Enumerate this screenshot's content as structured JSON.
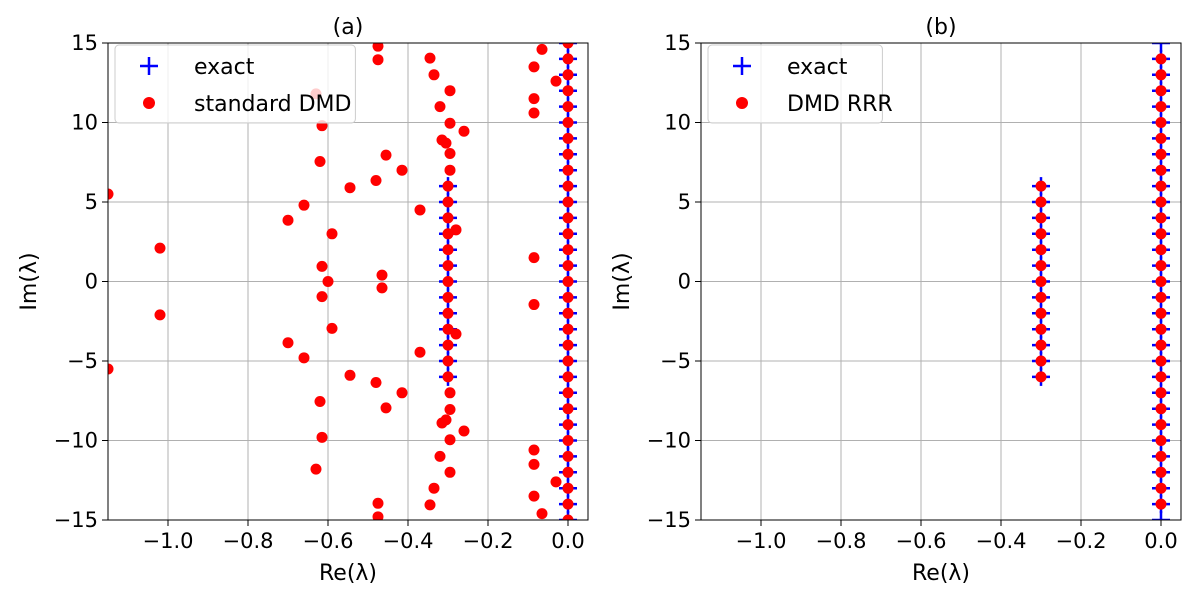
{
  "chart_data": [
    {
      "type": "scatter",
      "title": "(a)",
      "xlabel": "Re(λ)",
      "ylabel": "Im(λ)",
      "xlim": [
        -1.15,
        0.05
      ],
      "ylim": [
        -15,
        15
      ],
      "xticks": [
        -1.0,
        -0.8,
        -0.6,
        -0.4,
        -0.2,
        0.0
      ],
      "xtick_labels": [
        "−1.0",
        "−0.8",
        "−0.6",
        "−0.4",
        "−0.2",
        "0.0"
      ],
      "yticks": [
        -15,
        -10,
        -5,
        0,
        5,
        10,
        15
      ],
      "ytick_labels": [
        "−15",
        "−10",
        "−5",
        "0",
        "5",
        "10",
        "15"
      ],
      "grid": true,
      "legend_position": "top-left",
      "series": [
        {
          "name": "exact",
          "marker": "plus",
          "color": "#0000ff",
          "points": [
            [
              -0.3,
              -6
            ],
            [
              -0.3,
              -5
            ],
            [
              -0.3,
              -4
            ],
            [
              -0.3,
              -3
            ],
            [
              -0.3,
              -2
            ],
            [
              -0.3,
              -1
            ],
            [
              -0.3,
              0
            ],
            [
              -0.3,
              1
            ],
            [
              -0.3,
              2
            ],
            [
              -0.3,
              3
            ],
            [
              -0.3,
              4
            ],
            [
              -0.3,
              5
            ],
            [
              -0.3,
              6
            ],
            [
              0,
              -15
            ],
            [
              0,
              -14
            ],
            [
              0,
              -13
            ],
            [
              0,
              -12
            ],
            [
              0,
              -11
            ],
            [
              0,
              -10
            ],
            [
              0,
              -9
            ],
            [
              0,
              -8
            ],
            [
              0,
              -7
            ],
            [
              0,
              -6
            ],
            [
              0,
              -5
            ],
            [
              0,
              -4
            ],
            [
              0,
              -3
            ],
            [
              0,
              -2
            ],
            [
              0,
              -1
            ],
            [
              0,
              0
            ],
            [
              0,
              1
            ],
            [
              0,
              2
            ],
            [
              0,
              3
            ],
            [
              0,
              4
            ],
            [
              0,
              5
            ],
            [
              0,
              6
            ],
            [
              0,
              7
            ],
            [
              0,
              8
            ],
            [
              0,
              9
            ],
            [
              0,
              10
            ],
            [
              0,
              11
            ],
            [
              0,
              12
            ],
            [
              0,
              13
            ],
            [
              0,
              14
            ],
            [
              0,
              15
            ]
          ]
        },
        {
          "name": "standard DMD",
          "marker": "circle",
          "color": "#ff0000",
          "points": [
            [
              -0.3,
              -6
            ],
            [
              -0.3,
              -5
            ],
            [
              -0.3,
              -4
            ],
            [
              -0.3,
              -3
            ],
            [
              -0.3,
              -2
            ],
            [
              -0.3,
              -1
            ],
            [
              -0.3,
              0
            ],
            [
              -0.3,
              1
            ],
            [
              -0.3,
              2
            ],
            [
              -0.3,
              3
            ],
            [
              -0.3,
              4
            ],
            [
              -0.3,
              5
            ],
            [
              -0.3,
              6
            ],
            [
              0,
              -15
            ],
            [
              0,
              -14
            ],
            [
              0,
              -13
            ],
            [
              0,
              -12
            ],
            [
              0,
              -11
            ],
            [
              0,
              -10
            ],
            [
              0,
              -9
            ],
            [
              0,
              -8
            ],
            [
              0,
              -7
            ],
            [
              0,
              -6
            ],
            [
              0,
              -5
            ],
            [
              0,
              -4
            ],
            [
              0,
              -3
            ],
            [
              0,
              -2
            ],
            [
              0,
              -1
            ],
            [
              0,
              0
            ],
            [
              0,
              1
            ],
            [
              0,
              2
            ],
            [
              0,
              3
            ],
            [
              0,
              4
            ],
            [
              0,
              5
            ],
            [
              0,
              6
            ],
            [
              0,
              7
            ],
            [
              0,
              8
            ],
            [
              0,
              9
            ],
            [
              0,
              10
            ],
            [
              0,
              11
            ],
            [
              0,
              12
            ],
            [
              0,
              13
            ],
            [
              0,
              14
            ],
            [
              0,
              15
            ],
            [
              -1.15,
              5.5
            ],
            [
              -1.15,
              -5.5
            ],
            [
              -1.02,
              2.1
            ],
            [
              -1.02,
              -2.1
            ],
            [
              -0.7,
              3.85
            ],
            [
              -0.7,
              -3.85
            ],
            [
              -0.66,
              4.8
            ],
            [
              -0.66,
              -4.8
            ],
            [
              -0.62,
              7.55
            ],
            [
              -0.62,
              -7.55
            ],
            [
              -0.615,
              9.8
            ],
            [
              -0.615,
              -9.8
            ],
            [
              -0.63,
              11.8
            ],
            [
              -0.63,
              -11.8
            ],
            [
              -0.615,
              0.95
            ],
            [
              -0.615,
              -0.95
            ],
            [
              -0.6,
              0.0
            ],
            [
              -0.59,
              3.0
            ],
            [
              -0.59,
              -2.95
            ],
            [
              -0.545,
              5.9
            ],
            [
              -0.545,
              -5.9
            ],
            [
              -0.48,
              6.35
            ],
            [
              -0.48,
              -6.35
            ],
            [
              -0.475,
              14.8
            ],
            [
              -0.475,
              13.95
            ],
            [
              -0.475,
              -14.8
            ],
            [
              -0.475,
              -13.95
            ],
            [
              -0.465,
              0.4
            ],
            [
              -0.465,
              -0.4
            ],
            [
              -0.455,
              7.95
            ],
            [
              -0.455,
              -7.95
            ],
            [
              -0.415,
              7.0
            ],
            [
              -0.415,
              -7.0
            ],
            [
              -0.37,
              4.5
            ],
            [
              -0.37,
              -4.45
            ],
            [
              -0.345,
              14.05
            ],
            [
              -0.345,
              -14.05
            ],
            [
              -0.335,
              13.0
            ],
            [
              -0.335,
              -13.0
            ],
            [
              -0.32,
              11.0
            ],
            [
              -0.32,
              -11.0
            ],
            [
              -0.315,
              8.9
            ],
            [
              -0.315,
              -8.9
            ],
            [
              -0.305,
              8.7
            ],
            [
              -0.305,
              -8.7
            ],
            [
              -0.295,
              12.0
            ],
            [
              -0.295,
              -12.0
            ],
            [
              -0.295,
              9.95
            ],
            [
              -0.295,
              -9.95
            ],
            [
              -0.295,
              8.05
            ],
            [
              -0.295,
              -8.05
            ],
            [
              -0.295,
              7.0
            ],
            [
              -0.295,
              -7.0
            ],
            [
              -0.28,
              3.25
            ],
            [
              -0.28,
              -3.3
            ],
            [
              -0.26,
              9.45
            ],
            [
              -0.26,
              -9.4
            ],
            [
              -0.085,
              13.5
            ],
            [
              -0.085,
              -13.5
            ],
            [
              -0.085,
              11.5
            ],
            [
              -0.085,
              -11.5
            ],
            [
              -0.085,
              10.6
            ],
            [
              -0.085,
              -10.6
            ],
            [
              -0.085,
              1.5
            ],
            [
              -0.085,
              -1.45
            ],
            [
              -0.065,
              14.6
            ],
            [
              -0.065,
              -14.6
            ],
            [
              -0.03,
              12.6
            ],
            [
              -0.03,
              -12.6
            ]
          ]
        }
      ]
    },
    {
      "type": "scatter",
      "title": "(b)",
      "xlabel": "Re(λ)",
      "ylabel": "Im(λ)",
      "xlim": [
        -1.15,
        0.05
      ],
      "ylim": [
        -15,
        15
      ],
      "xticks": [
        -1.0,
        -0.8,
        -0.6,
        -0.4,
        -0.2,
        0.0
      ],
      "xtick_labels": [
        "−1.0",
        "−0.8",
        "−0.6",
        "−0.4",
        "−0.2",
        "0.0"
      ],
      "yticks": [
        -15,
        -10,
        -5,
        0,
        5,
        10,
        15
      ],
      "ytick_labels": [
        "−15",
        "−10",
        "−5",
        "0",
        "5",
        "10",
        "15"
      ],
      "grid": true,
      "legend_position": "top-left",
      "series": [
        {
          "name": "exact",
          "marker": "plus",
          "color": "#0000ff",
          "points": [
            [
              -0.3,
              -6
            ],
            [
              -0.3,
              -5
            ],
            [
              -0.3,
              -4
            ],
            [
              -0.3,
              -3
            ],
            [
              -0.3,
              -2
            ],
            [
              -0.3,
              -1
            ],
            [
              -0.3,
              0
            ],
            [
              -0.3,
              1
            ],
            [
              -0.3,
              2
            ],
            [
              -0.3,
              3
            ],
            [
              -0.3,
              4
            ],
            [
              -0.3,
              5
            ],
            [
              -0.3,
              6
            ],
            [
              0,
              -15
            ],
            [
              0,
              -14
            ],
            [
              0,
              -13
            ],
            [
              0,
              -12
            ],
            [
              0,
              -11
            ],
            [
              0,
              -10
            ],
            [
              0,
              -9
            ],
            [
              0,
              -8
            ],
            [
              0,
              -7
            ],
            [
              0,
              -6
            ],
            [
              0,
              -5
            ],
            [
              0,
              -4
            ],
            [
              0,
              -3
            ],
            [
              0,
              -2
            ],
            [
              0,
              -1
            ],
            [
              0,
              0
            ],
            [
              0,
              1
            ],
            [
              0,
              2
            ],
            [
              0,
              3
            ],
            [
              0,
              4
            ],
            [
              0,
              5
            ],
            [
              0,
              6
            ],
            [
              0,
              7
            ],
            [
              0,
              8
            ],
            [
              0,
              9
            ],
            [
              0,
              10
            ],
            [
              0,
              11
            ],
            [
              0,
              12
            ],
            [
              0,
              13
            ],
            [
              0,
              14
            ],
            [
              0,
              15
            ]
          ]
        },
        {
          "name": "DMD RRR",
          "marker": "circle",
          "color": "#ff0000",
          "points": [
            [
              -0.3,
              -6
            ],
            [
              -0.3,
              -5
            ],
            [
              -0.3,
              -4
            ],
            [
              -0.3,
              -3
            ],
            [
              -0.3,
              -2
            ],
            [
              -0.3,
              -1
            ],
            [
              -0.3,
              0
            ],
            [
              -0.3,
              1
            ],
            [
              -0.3,
              2
            ],
            [
              -0.3,
              3
            ],
            [
              -0.3,
              4
            ],
            [
              -0.3,
              5
            ],
            [
              -0.3,
              6
            ],
            [
              0,
              -14
            ],
            [
              0,
              -13
            ],
            [
              0,
              -12
            ],
            [
              0,
              -11
            ],
            [
              0,
              -10
            ],
            [
              0,
              -9
            ],
            [
              0,
              -8
            ],
            [
              0,
              -7
            ],
            [
              0,
              -6
            ],
            [
              0,
              -5
            ],
            [
              0,
              -4
            ],
            [
              0,
              -3
            ],
            [
              0,
              -2
            ],
            [
              0,
              -1
            ],
            [
              0,
              0
            ],
            [
              0,
              1
            ],
            [
              0,
              2
            ],
            [
              0,
              3
            ],
            [
              0,
              4
            ],
            [
              0,
              5
            ],
            [
              0,
              6
            ],
            [
              0,
              7
            ],
            [
              0,
              8
            ],
            [
              0,
              9
            ],
            [
              0,
              10
            ],
            [
              0,
              11
            ],
            [
              0,
              12
            ],
            [
              0,
              13
            ],
            [
              0,
              14
            ]
          ]
        }
      ]
    }
  ]
}
